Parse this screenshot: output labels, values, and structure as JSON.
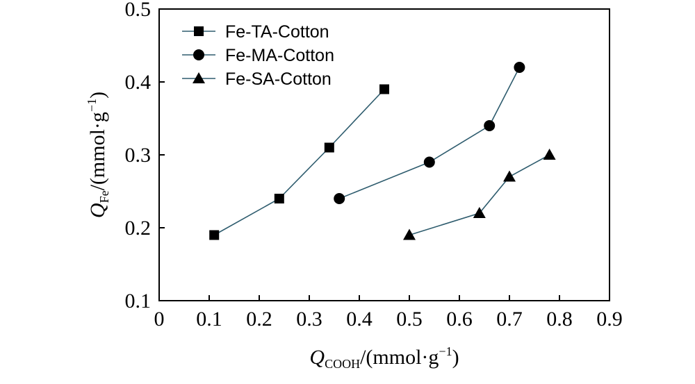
{
  "chart_data": {
    "type": "line",
    "x": {
      "symbol": "Q",
      "subscript": "COOH",
      "unit": "/(mmol·g",
      "exp": "−1",
      "close": ")",
      "lim": [
        0,
        0.9
      ],
      "ticks": [
        0,
        0.1,
        0.2,
        0.3,
        0.4,
        0.5,
        0.6,
        0.7,
        0.8,
        0.9
      ],
      "tick_labels": [
        "0",
        "0.1",
        "0.2",
        "0.3",
        "0.4",
        "0.5",
        "0.6",
        "0.7",
        "0.8",
        "0.9"
      ]
    },
    "y": {
      "symbol": "Q",
      "subscript": "Fe",
      "unit": "/(mmol·g",
      "exp": "−1",
      "close": ")",
      "lim": [
        0.1,
        0.5
      ],
      "ticks": [
        0.1,
        0.2,
        0.3,
        0.4,
        0.5
      ],
      "tick_labels": [
        "0.1",
        "0.2",
        "0.3",
        "0.4",
        "0.5"
      ]
    },
    "grid": false,
    "legend_position": "top-left",
    "series": [
      {
        "name": "Fe-TA-Cotton",
        "marker": "square",
        "color": "#2e5c6e",
        "points": [
          [
            0.11,
            0.19
          ],
          [
            0.24,
            0.24
          ],
          [
            0.34,
            0.31
          ],
          [
            0.45,
            0.39
          ]
        ]
      },
      {
        "name": "Fe-MA-Cotton",
        "marker": "circle",
        "color": "#2e5c6e",
        "points": [
          [
            0.36,
            0.24
          ],
          [
            0.54,
            0.29
          ],
          [
            0.66,
            0.34
          ],
          [
            0.72,
            0.42
          ]
        ]
      },
      {
        "name": "Fe-SA-Cotton",
        "marker": "triangle",
        "color": "#2e5c6e",
        "points": [
          [
            0.5,
            0.19
          ],
          [
            0.64,
            0.22
          ],
          [
            0.7,
            0.27
          ],
          [
            0.78,
            0.3
          ]
        ]
      }
    ]
  }
}
